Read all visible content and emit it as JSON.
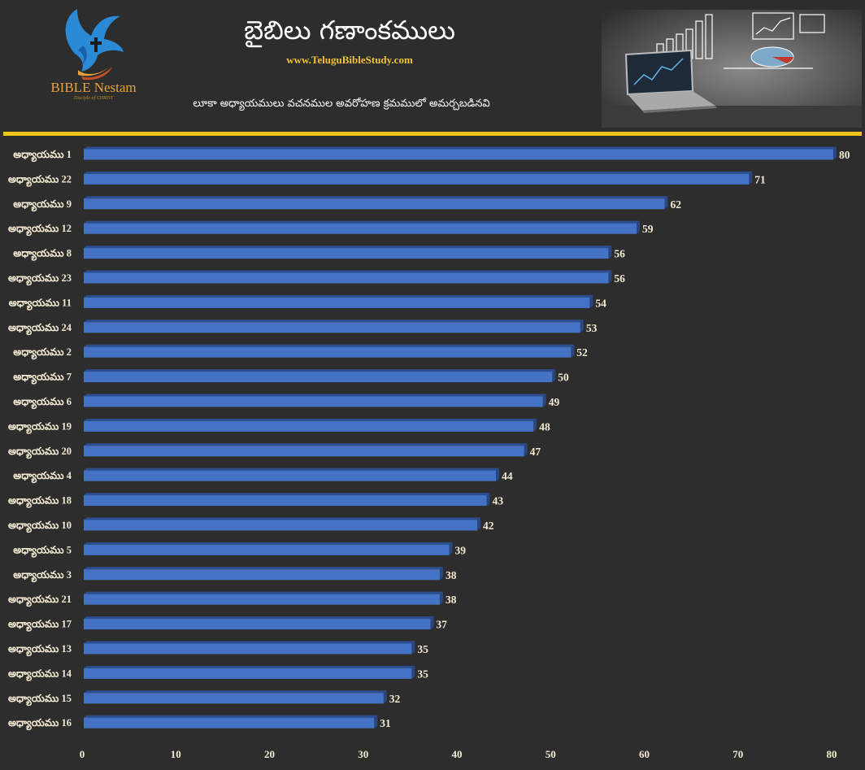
{
  "header": {
    "title": "బైబిలు గణాంకములు",
    "website": "www.TeluguBibleStudy.com",
    "subtitle": "లూకా అధ్యాయములు వచనముల అవరోహణ క్రమములో అమర్చబడినవి",
    "logo_text": "BIBLE Nestam",
    "logo_tagline": "Disciple of CHRIST"
  },
  "colors": {
    "background": "#2d2d2d",
    "bar": "#4472c4",
    "bar_top": "#2e4f8f",
    "accent_line": "#f0c419",
    "label_text": "#f4ead2"
  },
  "chart_data": {
    "type": "bar",
    "orientation": "horizontal",
    "categories": [
      "అధ్యాయము 1",
      "అధ్యాయము 22",
      "అధ్యాయము 9",
      "అధ్యాయము 12",
      "అధ్యాయము 8",
      "అధ్యాయము 23",
      "అధ్యాయము 11",
      "అధ్యాయము 24",
      "అధ్యాయము 2",
      "అధ్యాయము 7",
      "అధ్యాయము 6",
      "అధ్యాయము 19",
      "అధ్యాయము 20",
      "అధ్యాయము 4",
      "అధ్యాయము 18",
      "అధ్యాయము 10",
      "అధ్యాయము 5",
      "అధ్యాయము 3",
      "అధ్యాయము 21",
      "అధ్యాయము 17",
      "అధ్యాయము 13",
      "అధ్యాయము 14",
      "అధ్యాయము 15",
      "అధ్యాయము 16"
    ],
    "values": [
      80,
      71,
      62,
      59,
      56,
      56,
      54,
      53,
      52,
      50,
      49,
      48,
      47,
      44,
      43,
      42,
      39,
      38,
      38,
      37,
      35,
      35,
      32,
      31
    ],
    "xlim": [
      0,
      80
    ],
    "x_ticks": [
      0,
      10,
      20,
      30,
      40,
      50,
      60,
      70,
      80
    ],
    "grid": false,
    "data_labels": true
  }
}
